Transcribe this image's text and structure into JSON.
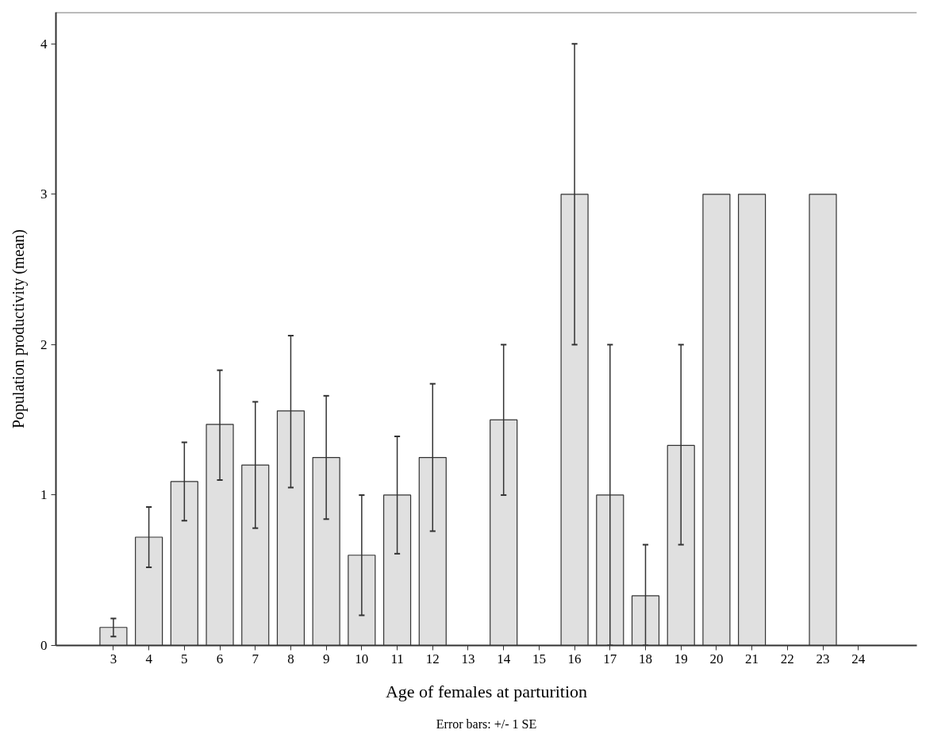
{
  "chart_data": {
    "type": "bar",
    "categories": [
      "3",
      "4",
      "5",
      "6",
      "7",
      "8",
      "9",
      "10",
      "11",
      "12",
      "13",
      "14",
      "15",
      "16",
      "17",
      "18",
      "19",
      "20",
      "21",
      "22",
      "23",
      "24"
    ],
    "values": [
      0.12,
      0.72,
      1.09,
      1.47,
      1.2,
      1.56,
      1.25,
      0.6,
      1.0,
      1.25,
      0,
      1.5,
      0,
      3,
      1.0,
      0.33,
      1.33,
      3,
      3,
      0,
      3,
      0
    ],
    "errors": [
      [
        0.06,
        0.18
      ],
      [
        0.52,
        0.92
      ],
      [
        0.83,
        1.35
      ],
      [
        1.1,
        1.83
      ],
      [
        0.78,
        1.62
      ],
      [
        1.05,
        2.06
      ],
      [
        0.84,
        1.66
      ],
      [
        0.2,
        1.0
      ],
      [
        0.61,
        1.39
      ],
      [
        0.76,
        1.74
      ],
      null,
      [
        1.0,
        2.0
      ],
      null,
      [
        2.0,
        4.0
      ],
      [
        0.0,
        2.0
      ],
      [
        0.0,
        0.67
      ],
      [
        0.67,
        2.0
      ],
      null,
      null,
      null,
      null,
      null
    ],
    "color": "#e0e0e0",
    "xlabel": "Age of females at parturition",
    "ylabel": "Population productivity (mean)",
    "ylim": [
      0,
      4.21
    ],
    "yticks": [
      0,
      1,
      2,
      3,
      4
    ],
    "grid": false,
    "annotations": [
      "Error bars: +/- 1 SE"
    ]
  }
}
